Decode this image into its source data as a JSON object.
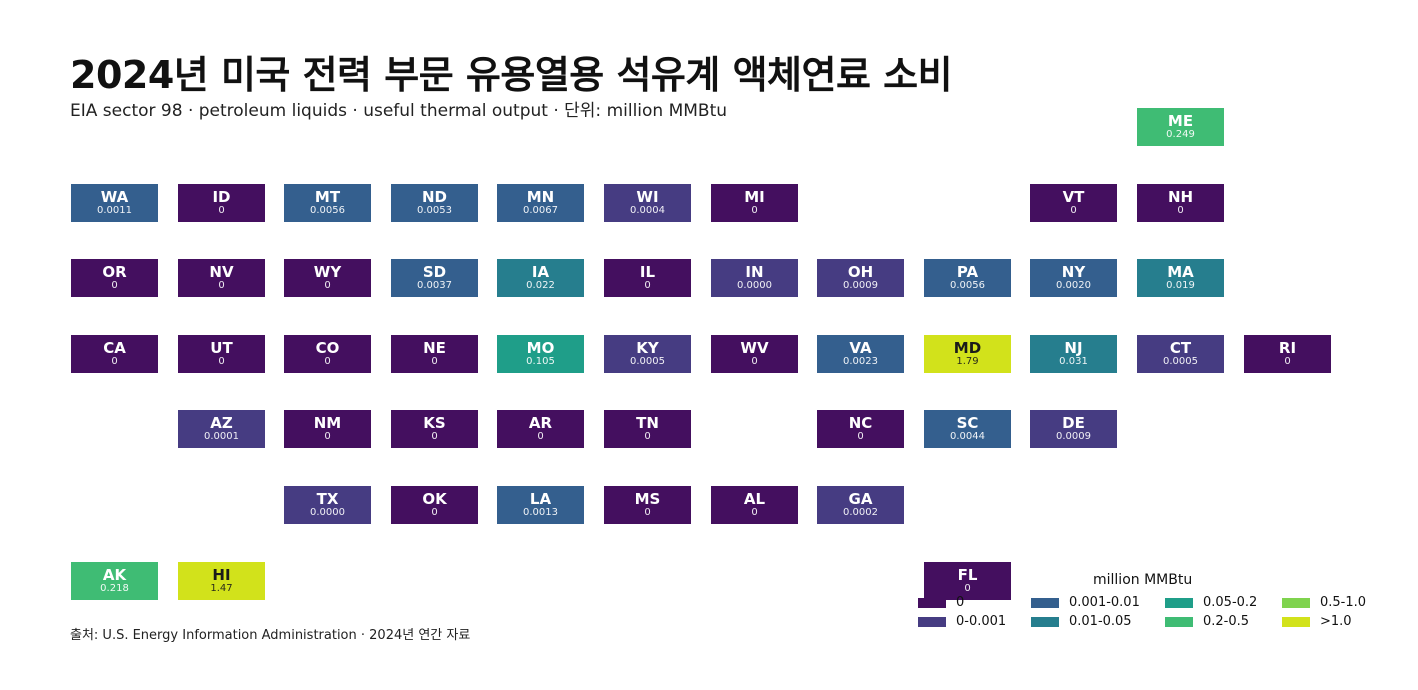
{
  "title": "2024년 미국 전력 부문 유용열용 석유계 액체연료 소비",
  "subtitle": "EIA sector 98 · petroleum liquids · useful thermal output · 단위: million MMBtu",
  "source": "출처: U.S. Energy Information Administration · 2024년 연간 자료",
  "colors": {
    "0": "#440f5f",
    "0-0.001": "#463c82",
    "0.001-0.01": "#345f8e",
    "0.01-0.05": "#267e8e",
    "0.05-0.2": "#1f9e89",
    "0.2-0.5": "#3fbc74",
    "0.5-1.0": "#7fd34e",
    ">1.0": "#d2e21b"
  },
  "legend": {
    "title": "million MMBtu",
    "items": [
      {
        "label": "0",
        "bin": "0"
      },
      {
        "label": "0-0.001",
        "bin": "0-0.001"
      },
      {
        "label": "0.001-0.01",
        "bin": "0.001-0.01"
      },
      {
        "label": "0.01-0.05",
        "bin": "0.01-0.05"
      },
      {
        "label": "0.05-0.2",
        "bin": "0.05-0.2"
      },
      {
        "label": "0.2-0.5",
        "bin": "0.2-0.5"
      },
      {
        "label": "0.5-1.0",
        "bin": "0.5-1.0"
      },
      {
        "label": ">1.0",
        "bin": ">1.0"
      }
    ]
  },
  "chart_data": {
    "type": "heatmap",
    "unit": "million MMBtu",
    "states": [
      {
        "state": "ME",
        "value": "0.249",
        "bin": "0.2-0.5",
        "col": 10,
        "row": 0
      },
      {
        "state": "WA",
        "value": "0.0011",
        "bin": "0.001-0.01",
        "col": 0,
        "row": 1
      },
      {
        "state": "ID",
        "value": "0",
        "bin": "0",
        "col": 1,
        "row": 1
      },
      {
        "state": "MT",
        "value": "0.0056",
        "bin": "0.001-0.01",
        "col": 2,
        "row": 1
      },
      {
        "state": "ND",
        "value": "0.0053",
        "bin": "0.001-0.01",
        "col": 3,
        "row": 1
      },
      {
        "state": "MN",
        "value": "0.0067",
        "bin": "0.001-0.01",
        "col": 4,
        "row": 1
      },
      {
        "state": "WI",
        "value": "0.0004",
        "bin": "0-0.001",
        "col": 5,
        "row": 1
      },
      {
        "state": "MI",
        "value": "0",
        "bin": "0",
        "col": 6,
        "row": 1
      },
      {
        "state": "VT",
        "value": "0",
        "bin": "0",
        "col": 9,
        "row": 1
      },
      {
        "state": "NH",
        "value": "0",
        "bin": "0",
        "col": 10,
        "row": 1
      },
      {
        "state": "OR",
        "value": "0",
        "bin": "0",
        "col": 0,
        "row": 2
      },
      {
        "state": "NV",
        "value": "0",
        "bin": "0",
        "col": 1,
        "row": 2
      },
      {
        "state": "WY",
        "value": "0",
        "bin": "0",
        "col": 2,
        "row": 2
      },
      {
        "state": "SD",
        "value": "0.0037",
        "bin": "0.001-0.01",
        "col": 3,
        "row": 2
      },
      {
        "state": "IA",
        "value": "0.022",
        "bin": "0.01-0.05",
        "col": 4,
        "row": 2
      },
      {
        "state": "IL",
        "value": "0",
        "bin": "0",
        "col": 5,
        "row": 2
      },
      {
        "state": "IN",
        "value": "0.0000",
        "bin": "0-0.001",
        "col": 6,
        "row": 2
      },
      {
        "state": "OH",
        "value": "0.0009",
        "bin": "0-0.001",
        "col": 7,
        "row": 2
      },
      {
        "state": "PA",
        "value": "0.0056",
        "bin": "0.001-0.01",
        "col": 8,
        "row": 2
      },
      {
        "state": "NY",
        "value": "0.0020",
        "bin": "0.001-0.01",
        "col": 9,
        "row": 2
      },
      {
        "state": "MA",
        "value": "0.019",
        "bin": "0.01-0.05",
        "col": 10,
        "row": 2
      },
      {
        "state": "CA",
        "value": "0",
        "bin": "0",
        "col": 0,
        "row": 3
      },
      {
        "state": "UT",
        "value": "0",
        "bin": "0",
        "col": 1,
        "row": 3
      },
      {
        "state": "CO",
        "value": "0",
        "bin": "0",
        "col": 2,
        "row": 3
      },
      {
        "state": "NE",
        "value": "0",
        "bin": "0",
        "col": 3,
        "row": 3
      },
      {
        "state": "MO",
        "value": "0.105",
        "bin": "0.05-0.2",
        "col": 4,
        "row": 3
      },
      {
        "state": "KY",
        "value": "0.0005",
        "bin": "0-0.001",
        "col": 5,
        "row": 3
      },
      {
        "state": "WV",
        "value": "0",
        "bin": "0",
        "col": 6,
        "row": 3
      },
      {
        "state": "VA",
        "value": "0.0023",
        "bin": "0.001-0.01",
        "col": 7,
        "row": 3
      },
      {
        "state": "MD",
        "value": "1.79",
        "bin": ">1.0",
        "col": 8,
        "row": 3
      },
      {
        "state": "NJ",
        "value": "0.031",
        "bin": "0.01-0.05",
        "col": 9,
        "row": 3
      },
      {
        "state": "CT",
        "value": "0.0005",
        "bin": "0-0.001",
        "col": 10,
        "row": 3
      },
      {
        "state": "RI",
        "value": "0",
        "bin": "0",
        "col": 11,
        "row": 3
      },
      {
        "state": "AZ",
        "value": "0.0001",
        "bin": "0-0.001",
        "col": 1,
        "row": 4
      },
      {
        "state": "NM",
        "value": "0",
        "bin": "0",
        "col": 2,
        "row": 4
      },
      {
        "state": "KS",
        "value": "0",
        "bin": "0",
        "col": 3,
        "row": 4
      },
      {
        "state": "AR",
        "value": "0",
        "bin": "0",
        "col": 4,
        "row": 4
      },
      {
        "state": "TN",
        "value": "0",
        "bin": "0",
        "col": 5,
        "row": 4
      },
      {
        "state": "NC",
        "value": "0",
        "bin": "0",
        "col": 7,
        "row": 4
      },
      {
        "state": "SC",
        "value": "0.0044",
        "bin": "0.001-0.01",
        "col": 8,
        "row": 4
      },
      {
        "state": "DE",
        "value": "0.0009",
        "bin": "0-0.001",
        "col": 9,
        "row": 4
      },
      {
        "state": "TX",
        "value": "0.0000",
        "bin": "0-0.001",
        "col": 2,
        "row": 5
      },
      {
        "state": "OK",
        "value": "0",
        "bin": "0",
        "col": 3,
        "row": 5
      },
      {
        "state": "LA",
        "value": "0.0013",
        "bin": "0.001-0.01",
        "col": 4,
        "row": 5
      },
      {
        "state": "MS",
        "value": "0",
        "bin": "0",
        "col": 5,
        "row": 5
      },
      {
        "state": "AL",
        "value": "0",
        "bin": "0",
        "col": 6,
        "row": 5
      },
      {
        "state": "GA",
        "value": "0.0002",
        "bin": "0-0.001",
        "col": 7,
        "row": 5
      },
      {
        "state": "AK",
        "value": "0.218",
        "bin": "0.2-0.5",
        "col": 0,
        "row": 6
      },
      {
        "state": "HI",
        "value": "1.47",
        "bin": ">1.0",
        "col": 1,
        "row": 6
      },
      {
        "state": "FL",
        "value": "0",
        "bin": "0",
        "col": 8,
        "row": 6
      }
    ]
  }
}
